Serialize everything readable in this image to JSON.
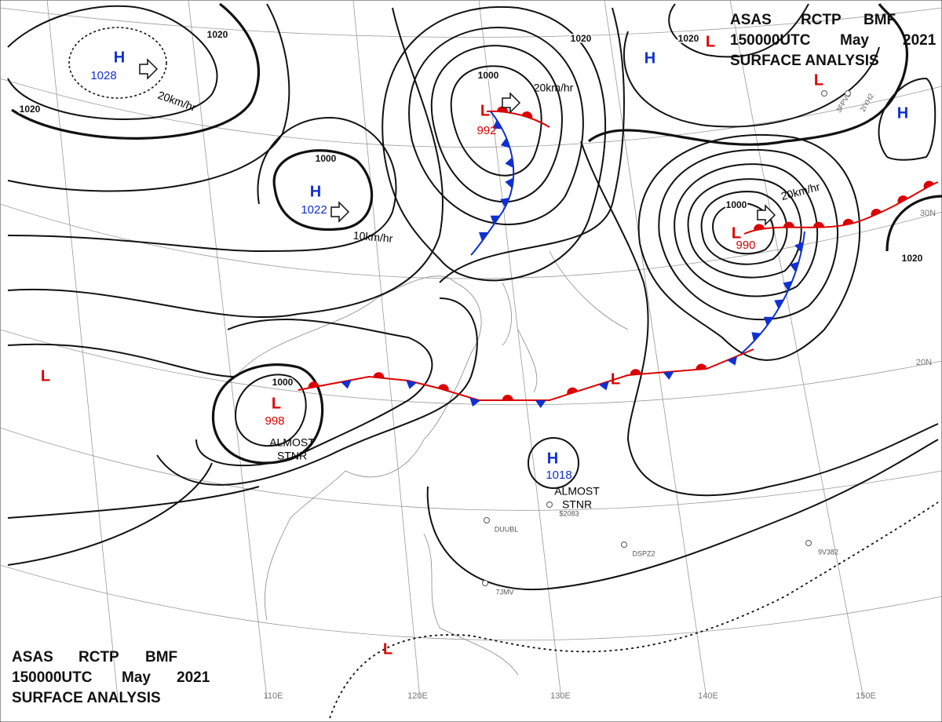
{
  "header": {
    "line1": [
      "ASAS",
      "RCTP",
      "BMF"
    ],
    "line2": [
      "150000UTC",
      "May",
      "2021"
    ],
    "line3": "SURFACE ANALYSIS"
  },
  "systems": [
    {
      "symbol": "H",
      "pressure": 1028
    },
    {
      "symbol": "H",
      "pressure": 1022
    },
    {
      "symbol": "L",
      "pressure": 992
    },
    {
      "symbol": "L",
      "pressure": 990
    },
    {
      "symbol": "L",
      "pressure": 998
    },
    {
      "symbol": "H",
      "pressure": 1018
    },
    {
      "symbol": "H"
    },
    {
      "symbol": "H"
    },
    {
      "symbol": "L"
    },
    {
      "symbol": "L"
    },
    {
      "symbol": "L"
    },
    {
      "symbol": "L"
    },
    {
      "symbol": "L"
    }
  ],
  "motions": [
    "20km/hr",
    "20km/hr",
    "20km/hr",
    "10km/hr"
  ],
  "notes": [
    {
      "lines": [
        "ALMOST",
        "STNR"
      ]
    },
    {
      "lines": [
        "ALMOST",
        "STNR"
      ]
    }
  ],
  "isobar_labels": [
    1020,
    1020,
    1020,
    1020,
    1020,
    1000,
    1000,
    1000,
    1000
  ],
  "latitudes": [
    "30N",
    "20N"
  ],
  "longitudes": [
    "110E",
    "120E",
    "130E",
    "140E",
    "150E"
  ],
  "stations": [
    "DUUBL",
    "7JMV",
    "DSPZ2",
    "9V382",
    "3FPV6",
    "2IYH2",
    "$2083"
  ]
}
